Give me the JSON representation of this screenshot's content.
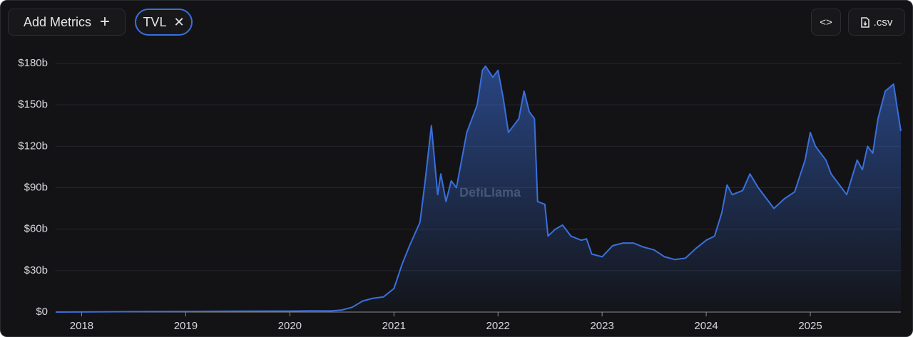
{
  "toolbar": {
    "add_metrics": "Add Metrics",
    "metric_chip": "TVL",
    "csv_button": ".csv"
  },
  "chart_data": {
    "type": "area",
    "watermark": "DefiLlama",
    "x": [
      2017.75,
      2018.5,
      2019.5,
      2020.0,
      2020.2,
      2020.4,
      2020.5,
      2020.6,
      2020.7,
      2020.8,
      2020.9,
      2021.0,
      2021.08,
      2021.15,
      2021.25,
      2021.3,
      2021.36,
      2021.42,
      2021.45,
      2021.5,
      2021.55,
      2021.6,
      2021.65,
      2021.7,
      2021.75,
      2021.8,
      2021.85,
      2021.88,
      2021.95,
      2022.0,
      2022.05,
      2022.1,
      2022.15,
      2022.2,
      2022.25,
      2022.3,
      2022.35,
      2022.38,
      2022.45,
      2022.48,
      2022.55,
      2022.62,
      2022.7,
      2022.8,
      2022.85,
      2022.9,
      2023.0,
      2023.1,
      2023.2,
      2023.3,
      2023.4,
      2023.5,
      2023.6,
      2023.7,
      2023.8,
      2023.9,
      2024.0,
      2024.08,
      2024.15,
      2024.2,
      2024.25,
      2024.35,
      2024.42,
      2024.5,
      2024.6,
      2024.65,
      2024.75,
      2024.85,
      2024.95,
      2025.0,
      2025.05,
      2025.15,
      2025.2,
      2025.3,
      2025.35,
      2025.45,
      2025.5,
      2025.55,
      2025.6,
      2025.65,
      2025.72,
      2025.8,
      2025.83,
      2025.87
    ],
    "series": [
      {
        "color": "#3a6fdc",
        "values": [
          0,
          0.3,
          0.6,
          0.7,
          0.9,
          0.8,
          1.5,
          3.5,
          8,
          10,
          11,
          17,
          35,
          48,
          65,
          95,
          135,
          85,
          100,
          80,
          95,
          90,
          110,
          130,
          140,
          150,
          175,
          178,
          170,
          175,
          155,
          130,
          135,
          140,
          160,
          145,
          140,
          80,
          78,
          55,
          60,
          63,
          55,
          52,
          53,
          42,
          40,
          48,
          50,
          50,
          47,
          45,
          40,
          38,
          39,
          46,
          52,
          55,
          72,
          92,
          85,
          88,
          100,
          90,
          80,
          75,
          82,
          87,
          110,
          130,
          120,
          110,
          100,
          90,
          85,
          110,
          103,
          120,
          115,
          140,
          160,
          165,
          150,
          131
        ]
      }
    ],
    "xlim": [
      2017.75,
      2025.87
    ],
    "xticks": [
      2018,
      2019,
      2020,
      2021,
      2022,
      2023,
      2024,
      2025
    ],
    "ylim": [
      0,
      180
    ],
    "yticks": [
      {
        "value": 0,
        "label": "$0"
      },
      {
        "value": 30,
        "label": "$30b"
      },
      {
        "value": 60,
        "label": "$60b"
      },
      {
        "value": 90,
        "label": "$90b"
      },
      {
        "value": 120,
        "label": "$120b"
      },
      {
        "value": 150,
        "label": "$150b"
      },
      {
        "value": 180,
        "label": "$180b"
      }
    ],
    "grid": true
  }
}
